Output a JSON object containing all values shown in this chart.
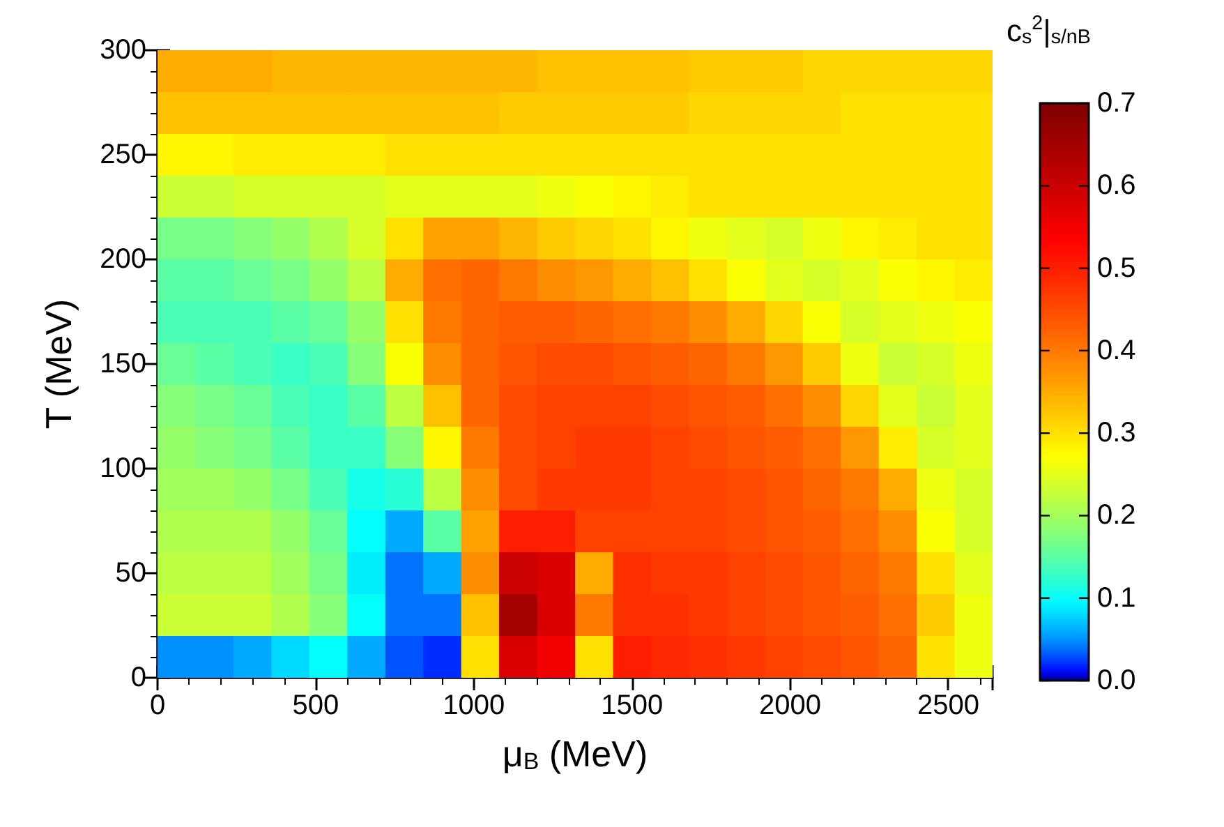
{
  "chart_data": {
    "type": "heatmap",
    "xlabel": "μ$_{B}$ (MeV)",
    "ylabel": "T (MeV)",
    "clabel": "c$_{s}$$^{2}$|$_{s/n}$$_{B}$",
    "x": [
      60,
      180,
      300,
      420,
      540,
      660,
      780,
      900,
      1020,
      1140,
      1260,
      1380,
      1500,
      1620,
      1740,
      1860,
      1980,
      2100,
      2220,
      2340,
      2460,
      2580
    ],
    "xlim": [
      0,
      2640
    ],
    "xticks": [
      0,
      500,
      1000,
      1500,
      2000,
      2500
    ],
    "ylim": [
      0,
      300
    ],
    "yticks": [
      0,
      50,
      100,
      150,
      200,
      250,
      300
    ],
    "clim": [
      0,
      0.7
    ],
    "cticks": [
      {
        "value": 0,
        "label": "0.0"
      },
      0.1,
      0.2,
      0.3,
      0.4,
      0.5,
      0.6,
      0.7
    ],
    "cells": [
      [
        0.35,
        0.35,
        0.35,
        0.34,
        0.34,
        0.34,
        0.34,
        0.34,
        0.34,
        0.34,
        0.33,
        0.33,
        0.33,
        0.33,
        0.32,
        0.32,
        0.32,
        0.31,
        0.31,
        0.31,
        0.31,
        0.31
      ],
      [
        0.33,
        0.33,
        0.33,
        0.33,
        0.33,
        0.33,
        0.33,
        0.33,
        0.33,
        0.32,
        0.32,
        0.32,
        0.32,
        0.32,
        0.31,
        0.31,
        0.31,
        0.31,
        0.3,
        0.3,
        0.3,
        0.3
      ],
      [
        0.28,
        0.28,
        0.29,
        0.29,
        0.29,
        0.29,
        0.3,
        0.3,
        0.3,
        0.3,
        0.3,
        0.3,
        0.3,
        0.3,
        0.3,
        0.3,
        0.3,
        0.3,
        0.3,
        0.3,
        0.3,
        0.3
      ],
      [
        0.23,
        0.23,
        0.24,
        0.24,
        0.24,
        0.24,
        0.25,
        0.25,
        0.25,
        0.25,
        0.26,
        0.27,
        0.28,
        0.29,
        0.3,
        0.3,
        0.3,
        0.3,
        0.3,
        0.3,
        0.3,
        0.3
      ],
      [
        0.17,
        0.17,
        0.18,
        0.19,
        0.21,
        0.24,
        0.3,
        0.36,
        0.36,
        0.34,
        0.32,
        0.31,
        0.3,
        0.28,
        0.26,
        0.25,
        0.24,
        0.26,
        0.28,
        0.29,
        0.3,
        0.3
      ],
      [
        0.15,
        0.15,
        0.16,
        0.17,
        0.19,
        0.22,
        0.35,
        0.41,
        0.42,
        0.4,
        0.38,
        0.37,
        0.35,
        0.33,
        0.3,
        0.27,
        0.25,
        0.24,
        0.25,
        0.27,
        0.28,
        0.29
      ],
      [
        0.14,
        0.14,
        0.14,
        0.15,
        0.16,
        0.19,
        0.3,
        0.4,
        0.42,
        0.43,
        0.43,
        0.42,
        0.41,
        0.4,
        0.38,
        0.35,
        0.31,
        0.27,
        0.24,
        0.25,
        0.26,
        0.27
      ],
      [
        0.16,
        0.15,
        0.14,
        0.13,
        0.14,
        0.18,
        0.27,
        0.38,
        0.42,
        0.44,
        0.45,
        0.45,
        0.44,
        0.43,
        0.42,
        0.4,
        0.37,
        0.32,
        0.26,
        0.23,
        0.24,
        0.26
      ],
      [
        0.18,
        0.17,
        0.16,
        0.14,
        0.13,
        0.15,
        0.22,
        0.33,
        0.42,
        0.45,
        0.46,
        0.46,
        0.46,
        0.45,
        0.44,
        0.43,
        0.41,
        0.38,
        0.31,
        0.25,
        0.23,
        0.25
      ],
      [
        0.19,
        0.18,
        0.17,
        0.15,
        0.13,
        0.13,
        0.18,
        0.28,
        0.4,
        0.45,
        0.46,
        0.47,
        0.47,
        0.46,
        0.45,
        0.44,
        0.43,
        0.41,
        0.37,
        0.29,
        0.24,
        0.25
      ],
      [
        0.2,
        0.2,
        0.19,
        0.17,
        0.14,
        0.11,
        0.12,
        0.22,
        0.38,
        0.45,
        0.47,
        0.47,
        0.47,
        0.46,
        0.46,
        0.45,
        0.44,
        0.42,
        0.4,
        0.35,
        0.26,
        0.24
      ],
      [
        0.21,
        0.21,
        0.21,
        0.19,
        0.16,
        0.1,
        0.06,
        0.15,
        0.36,
        0.5,
        0.5,
        0.46,
        0.46,
        0.46,
        0.46,
        0.45,
        0.44,
        0.43,
        0.41,
        0.38,
        0.27,
        0.24
      ],
      [
        0.22,
        0.22,
        0.22,
        0.2,
        0.17,
        0.09,
        0.04,
        0.06,
        0.38,
        0.6,
        0.58,
        0.35,
        0.48,
        0.47,
        0.47,
        0.46,
        0.45,
        0.44,
        0.42,
        0.4,
        0.3,
        0.25
      ],
      [
        0.23,
        0.23,
        0.23,
        0.21,
        0.18,
        0.1,
        0.04,
        0.04,
        0.33,
        0.65,
        0.58,
        0.4,
        0.48,
        0.48,
        0.47,
        0.46,
        0.45,
        0.44,
        0.43,
        0.41,
        0.32,
        0.26
      ],
      [
        0.05,
        0.05,
        0.06,
        0.08,
        0.1,
        0.06,
        0.03,
        0.02,
        0.3,
        0.58,
        0.55,
        0.3,
        0.5,
        0.49,
        0.48,
        0.47,
        0.46,
        0.45,
        0.44,
        0.42,
        0.3,
        0.26
      ]
    ]
  }
}
